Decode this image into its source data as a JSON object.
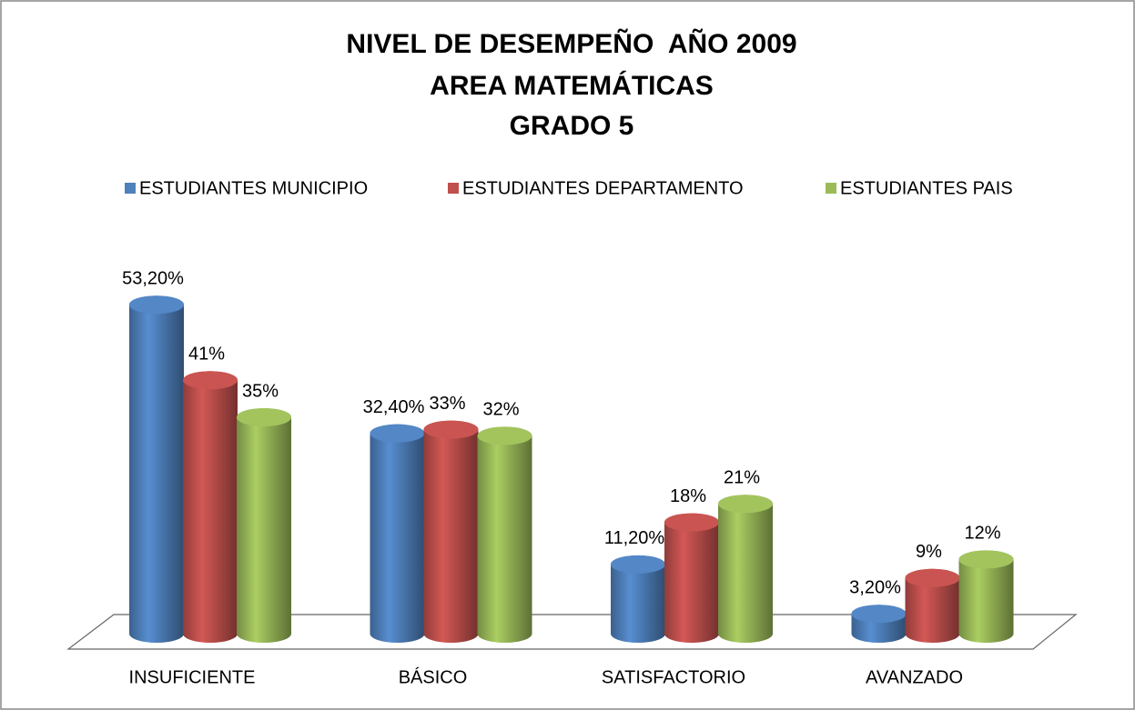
{
  "chart_data": {
    "type": "bar3d",
    "title": [
      "NIVEL DE DESEMPEÑO  AÑO 2009",
      "AREA MATEMÁTICAS",
      "GRADO 5"
    ],
    "categories": [
      "INSUFICIENTE",
      "BÁSICO",
      "SATISFACTORIO",
      "AVANZADO"
    ],
    "series": [
      {
        "name": "ESTUDIANTES MUNICIPIO",
        "color": "#4f81bd",
        "values": [
          53.2,
          32.4,
          11.2,
          3.2
        ],
        "value_labels": [
          "53,20%",
          "32,40%",
          "11,20%",
          "3,20%"
        ]
      },
      {
        "name": "ESTUDIANTES DEPARTAMENTO",
        "color": "#c0504d",
        "values": [
          41,
          33,
          18,
          9
        ],
        "value_labels": [
          "41%",
          "33%",
          "18%",
          "9%"
        ]
      },
      {
        "name": "ESTUDIANTES PAIS",
        "color": "#9bbb59",
        "values": [
          35,
          32,
          21,
          12
        ],
        "value_labels": [
          "35%",
          "32%",
          "21%",
          "12%"
        ]
      }
    ],
    "legend": "top"
  }
}
